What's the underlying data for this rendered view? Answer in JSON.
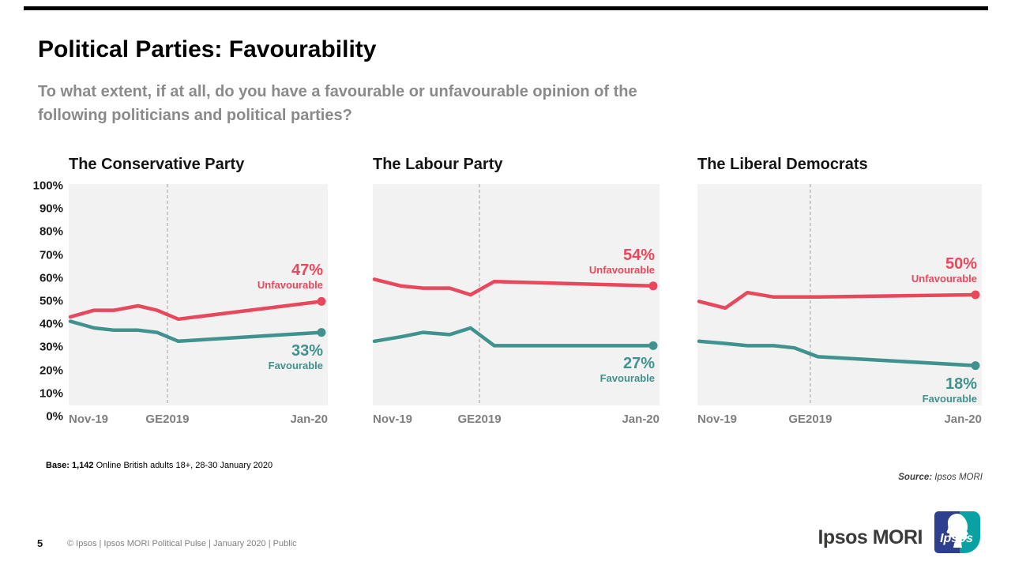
{
  "slide": {
    "title": "Political Parties: Favourability",
    "subtitle_line1": "To what extent, if at all, do you have a favourable or unfavourable opinion of the",
    "subtitle_line2": "following politicians and political parties?",
    "base_label": "Base: 1,142",
    "base_rest": " Online British adults 18+, 28-30 January 2020",
    "source_label": "Source:",
    "source_value": " Ipsos MORI",
    "page_number": "5",
    "footer_meta": "© Ipsos | Ipsos MORI  Political  Pulse |  January 2020 |  Public",
    "logo_wordmark": "Ipsos MORI",
    "logo_square_text": "Ipsos"
  },
  "colors": {
    "unfavourable": "#e9485c",
    "favourable": "#3f928e",
    "plot_background": "#f2f2f2",
    "ge_dashed_line": "#b3b3b3",
    "axis_text": "#7f7f7f",
    "subtitle_gray": "#8a8a8a",
    "logo_navy": "#2e3f8f",
    "logo_teal": "#0aa1a4"
  },
  "chart_data": [
    {
      "type": "line",
      "title": "The Conservative Party",
      "x": [
        0,
        0.095,
        0.175,
        0.27,
        0.345,
        0.43,
        1.0
      ],
      "xticks": [
        "Nov-19",
        "GE2019",
        "Jan-20"
      ],
      "ge_line_x": 0.381,
      "ylim": [
        0,
        100
      ],
      "yticks": [
        "100%",
        "90%",
        "80%",
        "70%",
        "60%",
        "50%",
        "40%",
        "30%",
        "20%",
        "10%",
        "0%"
      ],
      "series": [
        {
          "name": "Unfavourable",
          "color": "#e9485c",
          "values": [
            40,
            43,
            43,
            45,
            43,
            39,
            47
          ],
          "end_label": "47%"
        },
        {
          "name": "Favourable",
          "color": "#3f928e",
          "values": [
            38,
            35,
            34,
            34,
            33,
            29,
            33
          ],
          "end_label": "33%"
        }
      ]
    },
    {
      "type": "line",
      "title": "The Labour Party",
      "x": [
        0,
        0.095,
        0.175,
        0.27,
        0.345,
        0.43,
        1.0
      ],
      "xticks": [
        "Nov-19",
        "GE2019",
        "Jan-20"
      ],
      "ge_line_x": 0.372,
      "ylim": [
        0,
        100
      ],
      "series": [
        {
          "name": "Unfavourable",
          "color": "#e9485c",
          "values": [
            57,
            54,
            53,
            53,
            50,
            56,
            54
          ],
          "end_label": "54%"
        },
        {
          "name": "Favourable",
          "color": "#3f928e",
          "values": [
            29,
            31,
            33,
            32,
            35,
            27,
            27
          ],
          "end_label": "27%"
        }
      ]
    },
    {
      "type": "line",
      "title": "The Liberal Democrats",
      "x": [
        0,
        0.095,
        0.175,
        0.27,
        0.345,
        0.43,
        1.0
      ],
      "xticks": [
        "Nov-19",
        "GE2019",
        "Jan-20"
      ],
      "ge_line_x": 0.397,
      "ylim": [
        0,
        100
      ],
      "series": [
        {
          "name": "Unfavourable",
          "color": "#e9485c",
          "values": [
            47,
            44,
            51,
            49,
            49,
            49,
            50
          ],
          "end_label": "50%"
        },
        {
          "name": "Favourable",
          "color": "#3f928e",
          "values": [
            29,
            28,
            27,
            27,
            26,
            22,
            18
          ],
          "end_label": "18%"
        }
      ]
    }
  ]
}
